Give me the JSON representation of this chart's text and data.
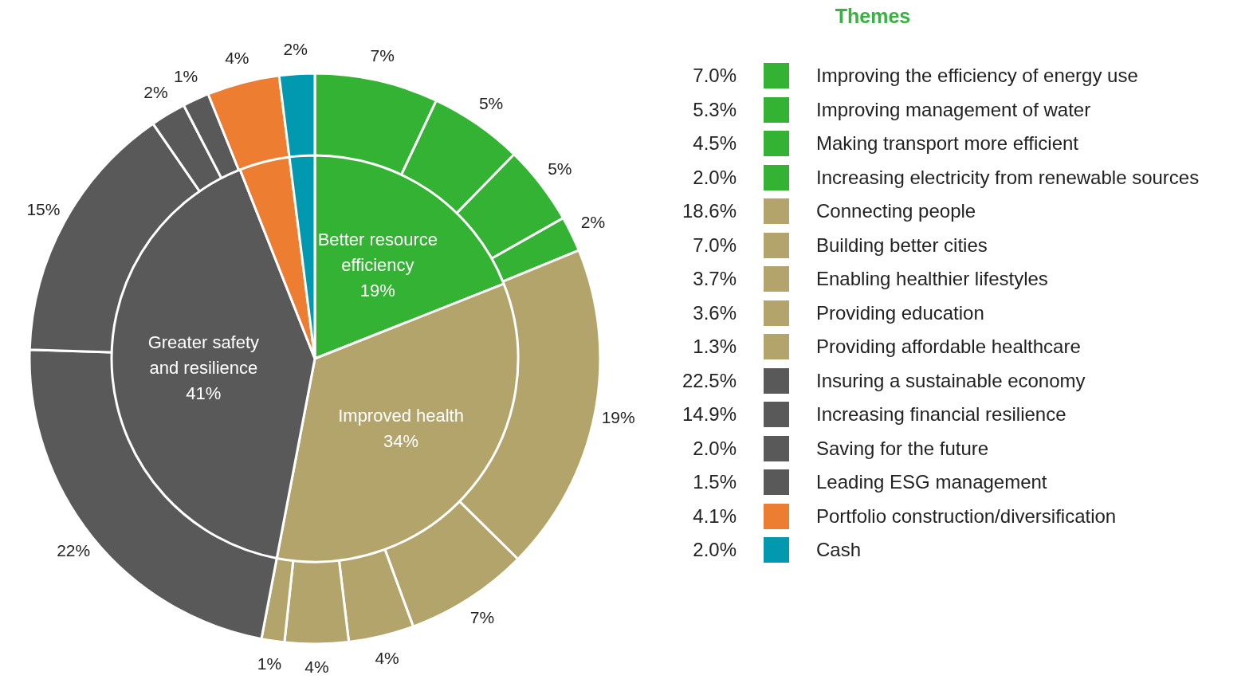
{
  "chart_data": [
    {
      "type": "donut",
      "legend_title": "Themes",
      "legend": "right",
      "categories": [
        "Improving the efficiency of energy use",
        "Improving management of water",
        "Making transport more efficient",
        "Increasing electricity from renewable sources",
        "Connecting people",
        "Building better cities",
        "Enabling healthier lifestyles",
        "Providing education",
        "Providing affordable healthcare",
        "Insuring a sustainable economy",
        "Increasing financial resilience",
        "Saving for the future",
        "Leading ESG management",
        "Portfolio construction/diversification",
        "Cash"
      ],
      "values": [
        7.0,
        5.3,
        4.5,
        2.0,
        18.6,
        7.0,
        3.7,
        3.6,
        1.3,
        22.5,
        14.9,
        2.0,
        1.5,
        4.1,
        2.0
      ],
      "colors": [
        "#34b233",
        "#34b233",
        "#34b233",
        "#34b233",
        "#b3a46b",
        "#b3a46b",
        "#b3a46b",
        "#b3a46b",
        "#b3a46b",
        "#595959",
        "#595959",
        "#595959",
        "#595959",
        "#ed7d31",
        "#0099b0"
      ],
      "value_labels": [
        "7%",
        "5%",
        "5%",
        "2%",
        "19%",
        "7%",
        "4%",
        "4%",
        "1%",
        "22%",
        "15%",
        "2%",
        "1%",
        "4%",
        "2%"
      ],
      "annotations": [
        "7.0%",
        "5.3%",
        "4.5%",
        "2.0%",
        "18.6%",
        "7.0%",
        "3.7%",
        "3.6%",
        "1.3%",
        "22.5%",
        "14.9%",
        "2.0%",
        "1.5%",
        "4.1%",
        "2.0%"
      ]
    },
    {
      "type": "pie",
      "legend": false,
      "categories": [
        "Better resource efficiency",
        "Improved health",
        "Greater safety and resilience",
        null,
        null
      ],
      "values": [
        19,
        34,
        41,
        4,
        2
      ],
      "colors": [
        "#34b233",
        "#b3a46b",
        "#595959",
        "#ed7d31",
        "#0099b0"
      ],
      "value_labels": [
        "19%",
        "34%",
        "41%",
        null,
        null
      ]
    }
  ]
}
